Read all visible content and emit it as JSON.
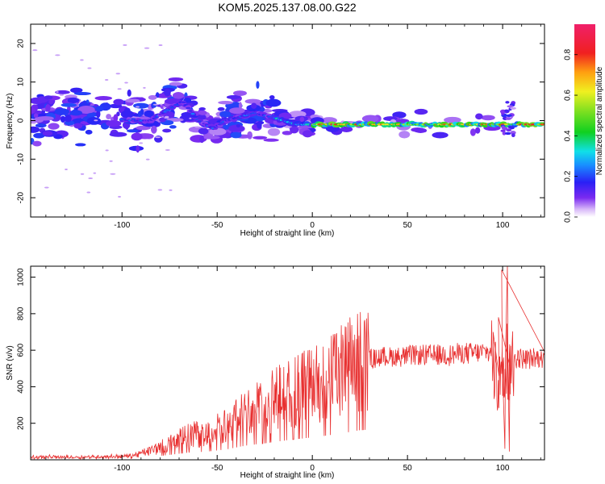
{
  "title": "KOM5.2025.137.08.00.G22",
  "chart_data": [
    {
      "type": "heatmap",
      "xlabel": "Height of straight line (km)",
      "ylabel": "Frequency (Hz)",
      "xlim": [
        -148,
        122
      ],
      "ylim": [
        -25,
        25
      ],
      "x_ticks": [
        -100,
        -50,
        0,
        50,
        100
      ],
      "x_tick_labels": [
        "-100",
        "-50",
        "0",
        "50",
        "100"
      ],
      "y_ticks": [
        -20,
        -10,
        0,
        10,
        20
      ],
      "y_tick_labels": [
        "-20",
        "-10",
        "0",
        "10",
        "20"
      ],
      "colorbar": {
        "label": "Normalized spectral amplitude",
        "range": [
          0,
          0.95
        ],
        "ticks": [
          0.0,
          0.2,
          0.4,
          0.6,
          0.8
        ],
        "tick_labels": [
          "0.0",
          "0.2",
          "0.4",
          "0.6",
          "0.8"
        ]
      },
      "ridge": {
        "x": [
          -148,
          -130,
          -110,
          -95,
          -85,
          -75,
          -68,
          -60,
          -52,
          -45,
          -38,
          -30,
          -22,
          -15,
          -8,
          0,
          10,
          25,
          50,
          75,
          95,
          100,
          105,
          122
        ],
        "y": [
          0,
          1,
          1,
          0,
          0,
          3,
          5,
          0,
          -2,
          0,
          1,
          2,
          1,
          0,
          -1,
          -1,
          -1,
          -1,
          -1,
          -1,
          -1,
          -1,
          -1,
          -1
        ]
      },
      "dominant_band": {
        "x_range": [
          0,
          122
        ],
        "frequency_hz": -1,
        "max_amplitude": 0.95
      }
    },
    {
      "type": "line",
      "xlabel": "Height of straight line (km)",
      "ylabel": "SNR (v/v)",
      "xlim": [
        -148,
        122
      ],
      "ylim": [
        0,
        1060
      ],
      "x_ticks": [
        -100,
        -50,
        0,
        50,
        100
      ],
      "x_tick_labels": [
        "-100",
        "-50",
        "0",
        "50",
        "100"
      ],
      "y_ticks": [
        200,
        400,
        600,
        800,
        1000
      ],
      "y_tick_labels": [
        "200",
        "400",
        "600",
        "800",
        "1000"
      ],
      "color": "#e83030",
      "envelope": {
        "x": [
          -148,
          -120,
          -95,
          -85,
          -75,
          -65,
          -55,
          -45,
          -35,
          -25,
          -15,
          -5,
          5,
          15,
          25,
          35,
          50,
          70,
          85,
          95,
          98,
          100,
          102,
          104,
          106,
          110,
          122
        ],
        "y": [
          15,
          15,
          20,
          50,
          90,
          130,
          150,
          190,
          260,
          300,
          350,
          390,
          430,
          480,
          540,
          560,
          570,
          575,
          585,
          590,
          450,
          600,
          550,
          500,
          560,
          555,
          555
        ]
      },
      "spikes": [
        {
          "x": 99.5,
          "y": 1040
        },
        {
          "x": 101.2,
          "y": 60
        },
        {
          "x": 102.5,
          "y": 1060
        },
        {
          "x": 103.5,
          "y": 45
        },
        {
          "x": 97.8,
          "y": 780
        },
        {
          "x": 95.0,
          "y": 700
        }
      ]
    }
  ]
}
